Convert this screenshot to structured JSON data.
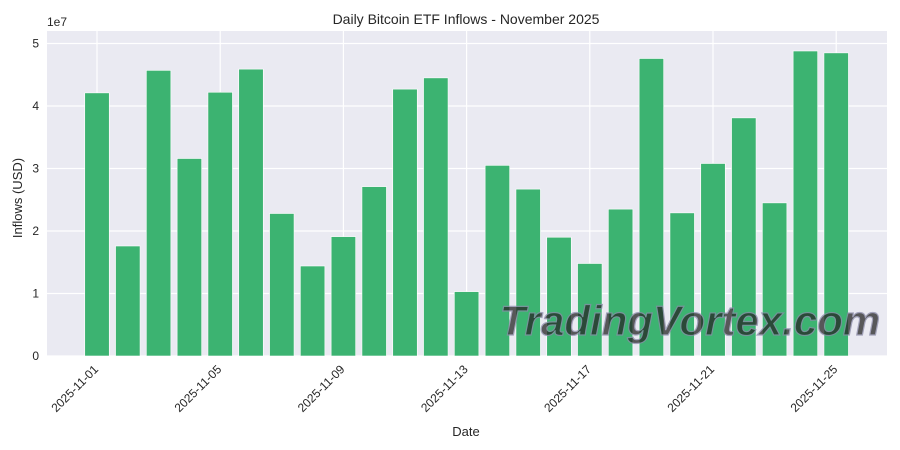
{
  "chart_data": {
    "type": "bar",
    "title": "Daily Bitcoin ETF Inflows - November 2025",
    "xlabel": "Date",
    "ylabel": "Inflows (USD)",
    "y_offset_label": "1e7",
    "ylim": [
      0,
      52000000.0
    ],
    "yticks": [
      0,
      1,
      2,
      3,
      4,
      5
    ],
    "grid": true,
    "bar_color": "#3cb371",
    "background_color": "#eaeaf2",
    "categories": [
      "2025-11-01",
      "2025-11-02",
      "2025-11-03",
      "2025-11-04",
      "2025-11-05",
      "2025-11-06",
      "2025-11-07",
      "2025-11-08",
      "2025-11-09",
      "2025-11-10",
      "2025-11-11",
      "2025-11-12",
      "2025-11-13",
      "2025-11-14",
      "2025-11-15",
      "2025-11-16",
      "2025-11-17",
      "2025-11-18",
      "2025-11-19",
      "2025-11-20",
      "2025-11-21",
      "2025-11-22",
      "2025-11-23",
      "2025-11-24",
      "2025-11-25"
    ],
    "xtick_labels": [
      "2025-11-01",
      "2025-11-05",
      "2025-11-09",
      "2025-11-13",
      "2025-11-17",
      "2025-11-21",
      "2025-11-25"
    ],
    "values": [
      42100000,
      17600000,
      45700000,
      31600000,
      42200000,
      45900000,
      22800000,
      14400000,
      19100000,
      27100000,
      42700000,
      44500000,
      10300000,
      30500000,
      26700000,
      19000000,
      14800000,
      23500000,
      47600000,
      22900000,
      30800000,
      38100000,
      24500000,
      48800000,
      48500000
    ]
  },
  "watermark": "TradingVortex.com"
}
